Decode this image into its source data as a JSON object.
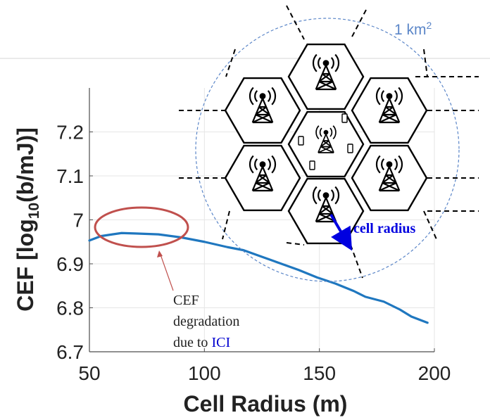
{
  "chart_data": {
    "type": "line",
    "xlabel": "Cell Radius (m)",
    "ylabel_main": "CEF [log",
    "ylabel_sub": "10",
    "ylabel_tail": "(b/mJ)]",
    "xlim": [
      50,
      200
    ],
    "ylim": [
      6.7,
      7.3
    ],
    "x_ticks": [
      50,
      100,
      150,
      200
    ],
    "y_ticks": [
      6.7,
      6.8,
      6.9,
      7.0,
      7.1,
      7.2
    ],
    "x_tick_labels": [
      "50",
      "100",
      "150",
      "200"
    ],
    "y_tick_labels": [
      "6.7",
      "6.8",
      "6.9",
      "7",
      "7.1",
      "7.2"
    ],
    "grid": true,
    "series": [
      {
        "color": "#1f77bf",
        "x": [
          50,
          55,
          60,
          64,
          70,
          80,
          90,
          100,
          110,
          117,
          125,
          133,
          141,
          149,
          157,
          165,
          170,
          178,
          185,
          190,
          197
        ],
        "y": [
          6.953,
          6.963,
          6.967,
          6.97,
          6.969,
          6.967,
          6.96,
          6.95,
          6.938,
          6.931,
          6.916,
          6.901,
          6.886,
          6.869,
          6.855,
          6.838,
          6.825,
          6.814,
          6.796,
          6.78,
          6.766
        ]
      }
    ],
    "annotations": {
      "area_label_main": "1 km",
      "area_label_sup": "2",
      "cell_radius_label": "cell radius",
      "note_lines": [
        "CEF",
        "degradation",
        "due to "
      ],
      "note_highlight": "ICI"
    },
    "colors": {
      "line": "#1f77bf",
      "circle": "#5b86c8",
      "ellipse": "#c0504d",
      "arrow": "#0000e0",
      "ici_text": "#0000d0"
    }
  }
}
